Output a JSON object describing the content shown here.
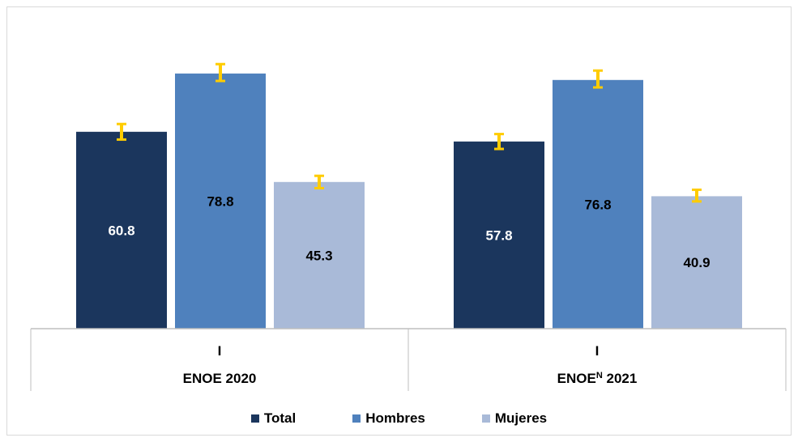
{
  "chart_data": {
    "type": "bar",
    "groups": [
      {
        "period": "I",
        "survey": "ENOE 2020",
        "survey_parts": [
          "ENOE",
          "",
          "2020"
        ]
      },
      {
        "period": "I",
        "survey": "ENOEᴺ 2021",
        "survey_parts": [
          "ENOE",
          "N",
          "2021"
        ]
      }
    ],
    "series": [
      {
        "name": "Total",
        "color": "#1b365d",
        "values": [
          60.8,
          57.8
        ],
        "error_low": [
          58.4,
          55.5
        ],
        "error_high": [
          63.2,
          60.1
        ],
        "label_color": "#ffffff"
      },
      {
        "name": "Hombres",
        "color": "#4f81bd",
        "values": [
          78.8,
          76.8
        ],
        "error_low": [
          76.5,
          74.5
        ],
        "error_high": [
          81.7,
          79.7
        ],
        "label_color": "#000000"
      },
      {
        "name": "Mujeres",
        "color": "#a9bad8",
        "values": [
          45.3,
          40.9
        ],
        "error_low": [
          43.4,
          39.3
        ],
        "error_high": [
          47.2,
          42.9
        ],
        "label_color": "#000000"
      }
    ],
    "error_bar_color": "#ffcc00",
    "ylim": [
      0,
      90
    ],
    "legend_position": "bottom",
    "grid": false
  }
}
